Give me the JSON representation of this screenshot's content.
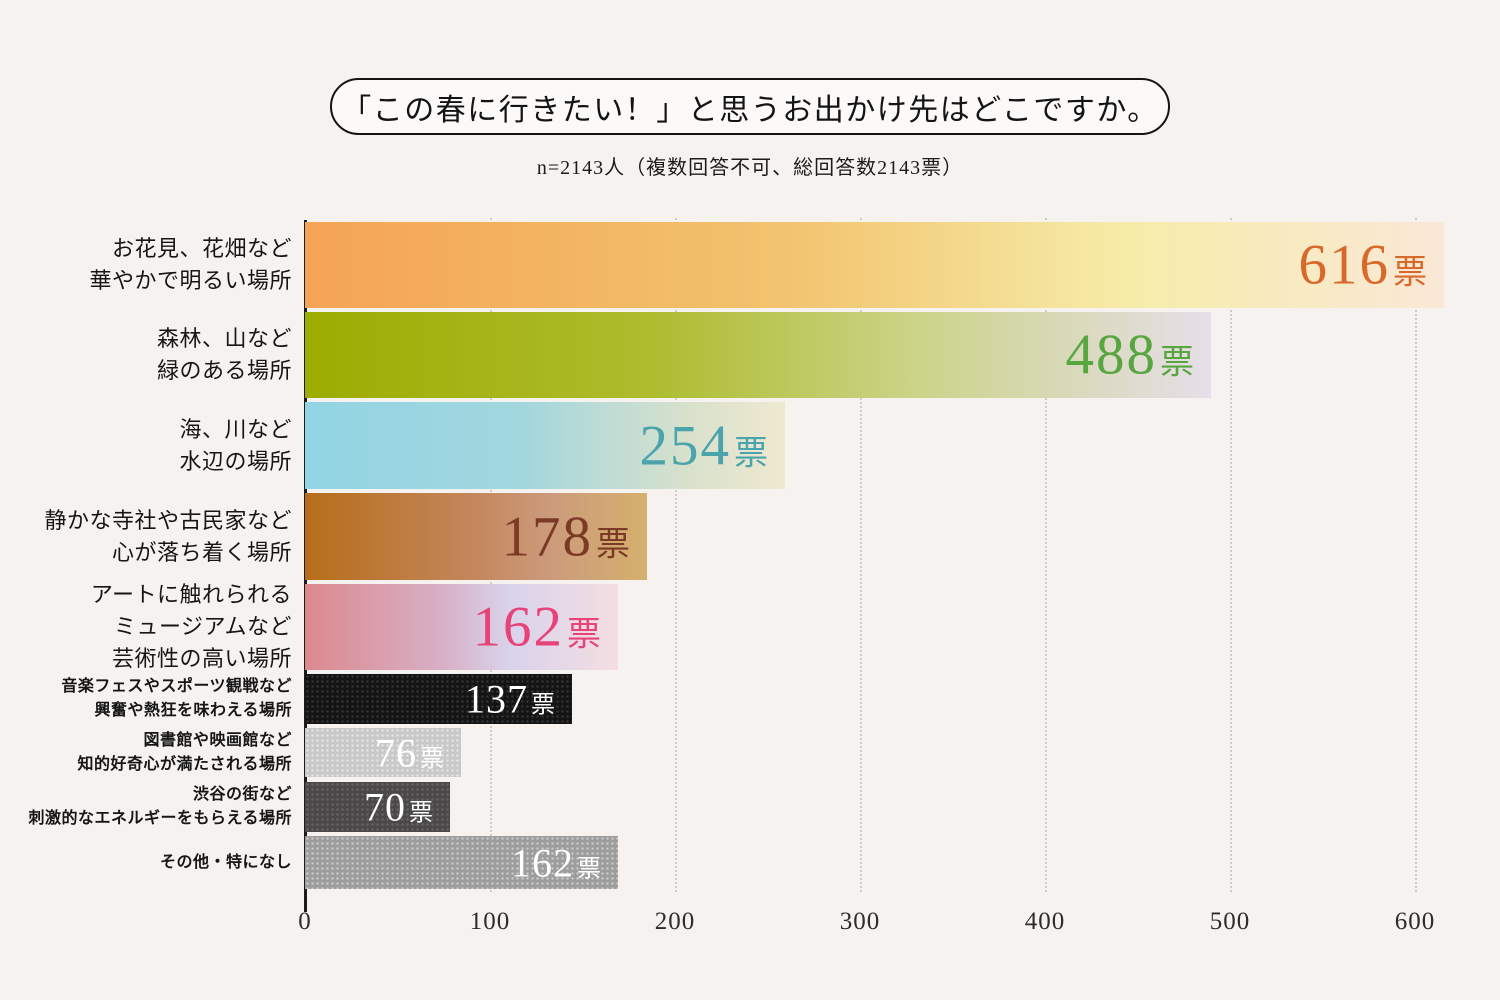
{
  "header": {
    "title": "「この春に行きたい！」と思うお出かけ先はどこですか。",
    "subtitle": "n=2143人（複数回答不可、総回答数2143票）"
  },
  "chart_data": {
    "type": "bar",
    "orientation": "horizontal",
    "title": "「この春に行きたい！」と思うお出かけ先はどこですか。",
    "subtitle": "n=2143人（複数回答不可、総回答数2143票）",
    "unit": "票",
    "xlim": [
      0,
      600
    ],
    "x_ticks": [
      0,
      100,
      200,
      300,
      400,
      500,
      600
    ],
    "grid": "dotted-vertical",
    "legend": "none",
    "categories": [
      "お花見、花畑など華やかで明るい場所",
      "森林、山など緑のある場所",
      "海、川など水辺の場所",
      "静かな寺社や古民家など心が落ち着く場所",
      "アートに触れられるミュージアムなど芸術性の高い場所",
      "音楽フェスやスポーツ観戦など興奮や熱狂を味わえる場所",
      "図書館や映画館など知的好奇心が満たされる場所",
      "渋谷の街など刺激的なエネルギーをもらえる場所",
      "その他・特になし"
    ],
    "values": [
      616,
      488,
      254,
      178,
      162,
      137,
      76,
      70,
      162
    ],
    "rows": [
      {
        "label_lines": [
          "お花見、花畑など",
          "華やかで明るい場所"
        ],
        "value": 616,
        "unit": "票",
        "size": "large",
        "value_color": "#d8692a",
        "bar": {
          "kind": "gradient",
          "stops": [
            [
              "#f4a455",
              "0%"
            ],
            [
              "#f2c36e",
              "42%"
            ],
            [
              "#f6eca8",
              "72%"
            ],
            [
              "#fae8d7",
              "100%"
            ]
          ]
        }
      },
      {
        "label_lines": [
          "森林、山など",
          "緑のある場所"
        ],
        "value": 488,
        "unit": "票",
        "size": "large",
        "value_color": "#57a63f",
        "bar": {
          "kind": "gradient",
          "stops": [
            [
              "#9dac00",
              "0%"
            ],
            [
              "#aebc2e",
              "38%"
            ],
            [
              "#ccd489",
              "68%"
            ],
            [
              "#e6dee9",
              "100%"
            ]
          ]
        }
      },
      {
        "label_lines": [
          "海、川など",
          "水辺の場所"
        ],
        "value": 254,
        "unit": "票",
        "size": "large",
        "value_color": "#4ba4ab",
        "bar": {
          "kind": "gradient",
          "stops": [
            [
              "#92d5e5",
              "0%"
            ],
            [
              "#a2d7dd",
              "45%"
            ],
            [
              "#d8e1cc",
              "80%"
            ],
            [
              "#efe9d1",
              "100%"
            ]
          ]
        }
      },
      {
        "label_lines": [
          "静かな寺社や古民家など",
          "心が落ち着く場所"
        ],
        "value": 178,
        "unit": "票",
        "size": "large",
        "value_color": "#7c3a26",
        "bar": {
          "kind": "gradient",
          "stops": [
            [
              "#b76d1a",
              "0%"
            ],
            [
              "#c4875e",
              "50%"
            ],
            [
              "#cc9b7c",
              "72%"
            ],
            [
              "#d5b06c",
              "100%"
            ]
          ]
        }
      },
      {
        "label_lines": [
          "アートに触れられる",
          "ミュージアムなど",
          "芸術性の高い場所"
        ],
        "value": 162,
        "unit": "票",
        "size": "large",
        "value_color": "#e74379",
        "bar": {
          "kind": "gradient",
          "stops": [
            [
              "#dc898e",
              "0%"
            ],
            [
              "#d8aec3",
              "42%"
            ],
            [
              "#d9d3eb",
              "66%"
            ],
            [
              "#f4dee2",
              "100%"
            ]
          ]
        }
      },
      {
        "label_lines": [
          "音楽フェスやスポーツ観戦など",
          "興奮や熱狂を味わえる場所"
        ],
        "value": 137,
        "unit": "票",
        "size": "small",
        "value_color": "#ffffff",
        "bar": {
          "kind": "dots",
          "base": "#141414",
          "dot": "rgba(100,100,100,0.45)"
        }
      },
      {
        "label_lines": [
          "図書館や映画館など",
          "知的好奇心が満たされる場所"
        ],
        "value": 76,
        "unit": "票",
        "size": "small",
        "value_color": "#ffffff",
        "bar": {
          "kind": "dots",
          "base": "#c9c8c8",
          "dot": "rgba(255,255,255,0.6)"
        }
      },
      {
        "label_lines": [
          "渋谷の街など",
          "刺激的なエネルギーをもらえる場所"
        ],
        "value": 70,
        "unit": "票",
        "size": "small",
        "value_color": "#ffffff",
        "bar": {
          "kind": "dots",
          "base": "#4b4849",
          "dot": "rgba(140,140,140,0.45)"
        }
      },
      {
        "label_lines": [
          "その他・特になし"
        ],
        "value": 162,
        "unit": "票",
        "size": "small",
        "value_color": "#ffffff",
        "bar": {
          "kind": "dots",
          "base": "#9e9d9d",
          "dot": "rgba(255,255,255,0.5)"
        }
      }
    ],
    "colors": {
      "background": "#f6f2f0",
      "axis_line": "#1c1c1c",
      "gridline": "#d1cbc8",
      "tick_label": "#2e2c2b"
    }
  }
}
